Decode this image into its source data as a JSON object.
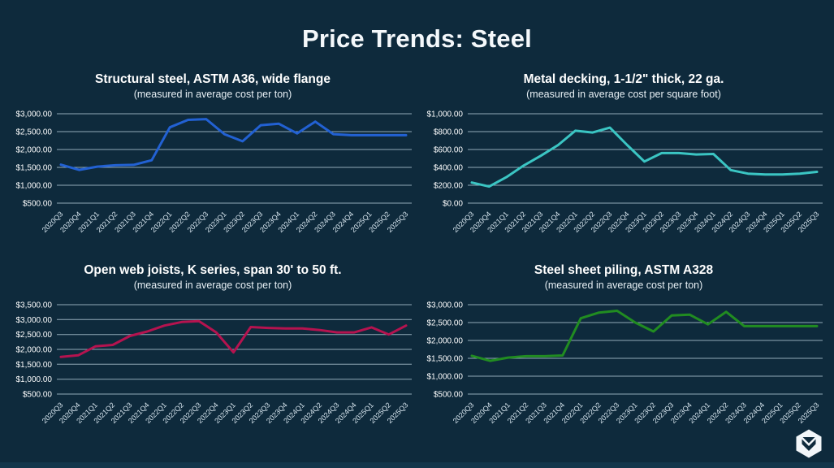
{
  "slide": {
    "title": "Price Trends: Steel",
    "background_color": "#0e2a3c",
    "gridline_color": "#a9c0cd",
    "axis_label_color": "#d9e7f0",
    "footer_logo": "hexagon-brand-logo"
  },
  "chart_data": [
    {
      "type": "line",
      "title": "Structural steel, ASTM A36, wide flange",
      "subtitle": "(measured in average cost per ton)",
      "color": "#2261d3",
      "grid": true,
      "legend": false,
      "ylim": [
        500,
        3000
      ],
      "yticks": [
        {
          "v": 3000,
          "label": "$3,000.00"
        },
        {
          "v": 2500,
          "label": "$2,500.00"
        },
        {
          "v": 2000,
          "label": "$2,000.00"
        },
        {
          "v": 1500,
          "label": "$1,500.00"
        },
        {
          "v": 1000,
          "label": "$1,000.00"
        },
        {
          "v": 500,
          "label": "$500.00"
        }
      ],
      "categories": [
        "2020Q3",
        "2020Q4",
        "2021Q1",
        "2021Q2",
        "2021Q3",
        "2021Q4",
        "2022Q1",
        "2022Q2",
        "2022Q3",
        "2023Q1",
        "2023Q2",
        "2023Q3",
        "2023Q4",
        "2024Q1",
        "2024Q2",
        "2024Q3",
        "2024Q4",
        "2025Q1",
        "2025Q2",
        "2025Q3"
      ],
      "values": [
        1575,
        1430,
        1520,
        1560,
        1570,
        1700,
        2620,
        2830,
        2850,
        2430,
        2230,
        2680,
        2720,
        2450,
        2780,
        2430,
        2400,
        2400,
        2400,
        2400
      ]
    },
    {
      "type": "line",
      "title": "Metal decking, 1-1/2\" thick, 22 ga.",
      "subtitle": "(measured in average cost per square foot)",
      "color": "#3bc5c3",
      "grid": true,
      "legend": false,
      "ylim": [
        0,
        1000
      ],
      "yticks": [
        {
          "v": 1000,
          "label": "$1,000.00"
        },
        {
          "v": 800,
          "label": "$800.00"
        },
        {
          "v": 600,
          "label": "$600.00"
        },
        {
          "v": 400,
          "label": "$400.00"
        },
        {
          "v": 200,
          "label": "$200.00"
        },
        {
          "v": 0,
          "label": "$0.00"
        }
      ],
      "categories": [
        "2020Q3",
        "2020Q4",
        "2021Q1",
        "2021Q2",
        "2021Q3",
        "2021Q4",
        "2022Q1",
        "2022Q2",
        "2022Q3",
        "2022Q4",
        "2023Q1",
        "2023Q2",
        "2023Q3",
        "2023Q4",
        "2024Q1",
        "2024Q2",
        "2024Q3",
        "2024Q4",
        "2025Q1",
        "2025Q2",
        "2025Q3"
      ],
      "values": [
        230,
        185,
        290,
        420,
        530,
        650,
        810,
        790,
        845,
        650,
        465,
        560,
        560,
        545,
        550,
        370,
        330,
        320,
        320,
        330,
        350
      ]
    },
    {
      "type": "line",
      "title": "Open web joists, K series, span 30' to 50 ft.",
      "subtitle": "(measured in average cost per ton)",
      "color": "#b5134f",
      "grid": true,
      "legend": false,
      "ylim": [
        500,
        3500
      ],
      "yticks": [
        {
          "v": 3500,
          "label": "$3,500.00"
        },
        {
          "v": 3000,
          "label": "$3,000.00"
        },
        {
          "v": 2500,
          "label": "$2,500.00"
        },
        {
          "v": 2000,
          "label": "$2,000.00"
        },
        {
          "v": 1500,
          "label": "$1,500.00"
        },
        {
          "v": 1000,
          "label": "$1,000.00"
        },
        {
          "v": 500,
          "label": "$500.00"
        }
      ],
      "categories": [
        "2020Q3",
        "2020Q4",
        "2021Q1",
        "2021Q2",
        "2021Q3",
        "2021Q4",
        "2022Q1",
        "2022Q2",
        "2022Q3",
        "2022Q4",
        "2023Q1",
        "2023Q2",
        "2023Q3",
        "2023Q4",
        "2024Q1",
        "2024Q2",
        "2024Q3",
        "2024Q4",
        "2025Q1",
        "2025Q2",
        "2025Q3"
      ],
      "values": [
        1750,
        1800,
        2100,
        2150,
        2450,
        2600,
        2800,
        2920,
        2950,
        2570,
        1900,
        2750,
        2720,
        2700,
        2700,
        2650,
        2570,
        2570,
        2740,
        2500,
        2800
      ]
    },
    {
      "type": "line",
      "title": "Steel sheet piling, ASTM A328",
      "subtitle": "(measured in average cost per ton)",
      "color": "#218c21",
      "grid": true,
      "legend": false,
      "ylim": [
        500,
        3000
      ],
      "yticks": [
        {
          "v": 3000,
          "label": "$3,000.00"
        },
        {
          "v": 2500,
          "label": "$2,500.00"
        },
        {
          "v": 2000,
          "label": "$2,000.00"
        },
        {
          "v": 1500,
          "label": "$1,500.00"
        },
        {
          "v": 1000,
          "label": "$1,000.00"
        },
        {
          "v": 500,
          "label": "$500.00"
        }
      ],
      "categories": [
        "2020Q3",
        "2020Q4",
        "2021Q1",
        "2021Q2",
        "2021Q3",
        "2021Q4",
        "2022Q1",
        "2022Q2",
        "2022Q3",
        "2023Q1",
        "2023Q2",
        "2023Q3",
        "2023Q4",
        "2024Q1",
        "2024Q2",
        "2024Q3",
        "2024Q4",
        "2025Q1",
        "2025Q2",
        "2025Q3"
      ],
      "values": [
        1570,
        1430,
        1520,
        1560,
        1560,
        1580,
        2620,
        2780,
        2830,
        2500,
        2250,
        2700,
        2720,
        2450,
        2800,
        2400,
        2400,
        2400,
        2400,
        2400
      ]
    }
  ]
}
